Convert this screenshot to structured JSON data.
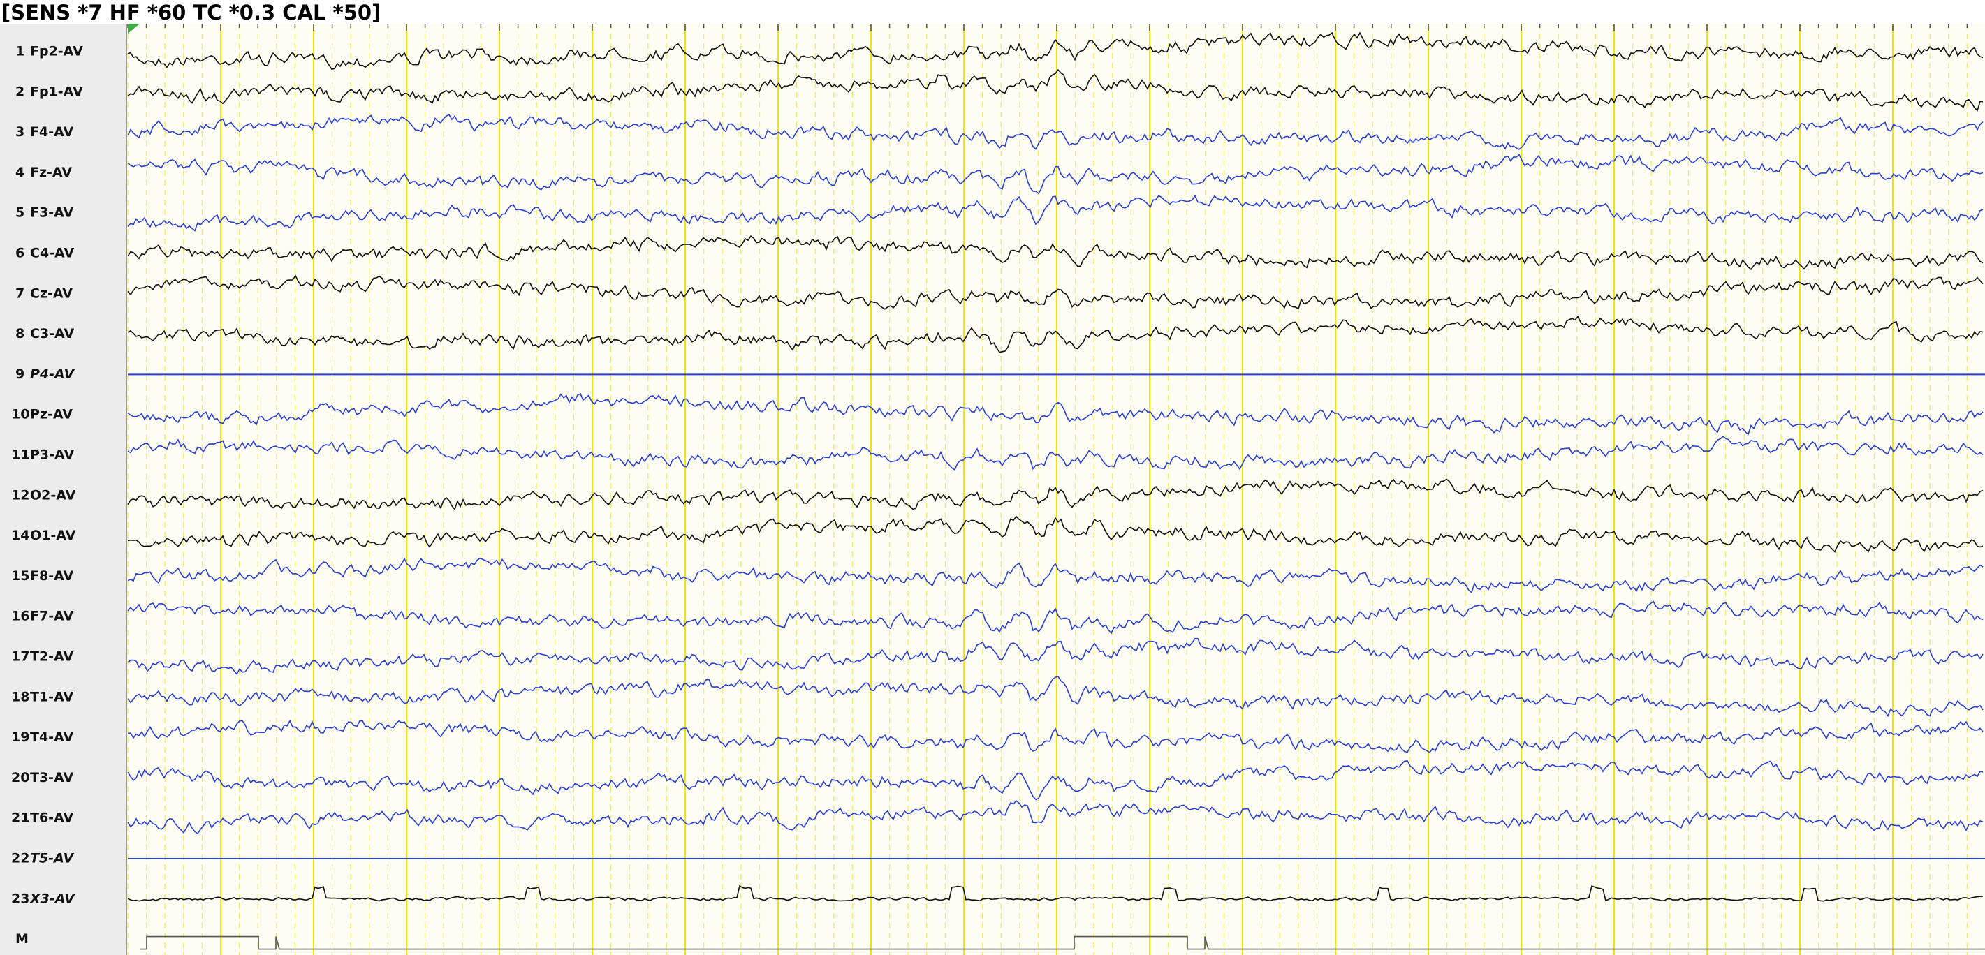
{
  "header": {
    "settings": "[SENS *7  HF *60  TC *0.3  CAL *50]"
  },
  "channels": [
    {
      "number": "1",
      "label": "Fp2-AV"
    },
    {
      "number": "2",
      "label": "Fp1-AV"
    },
    {
      "number": "3",
      "label": "F4-AV"
    },
    {
      "number": "4",
      "label": "Fz-AV"
    },
    {
      "number": "5",
      "label": "F3-AV"
    },
    {
      "number": "6",
      "label": "C4-AV"
    },
    {
      "number": "7",
      "label": "Cz-AV"
    },
    {
      "number": "8",
      "label": "C3-AV"
    },
    {
      "number": "9",
      "label": "P4-AV"
    },
    {
      "number": "10",
      "label": "Pz-AV"
    },
    {
      "number": "11",
      "label": "P3-AV"
    },
    {
      "number": "12",
      "label": "O2-AV"
    },
    {
      "number": "14",
      "label": "O1-AV"
    },
    {
      "number": "15",
      "label": "F8-AV"
    },
    {
      "number": "16",
      "label": "F7-AV"
    },
    {
      "number": "17",
      "label": "T2-AV"
    },
    {
      "number": "18",
      "label": "T1-AV"
    },
    {
      "number": "19",
      "label": "T4-AV"
    },
    {
      "number": "20",
      "label": "T3-AV"
    },
    {
      "number": "21",
      "label": "T6-AV"
    },
    {
      "number": "22",
      "label": "T5-AV"
    },
    {
      "number": "23",
      "label": "X3-AV"
    },
    {
      "number": "M",
      "label": null
    }
  ]
}
